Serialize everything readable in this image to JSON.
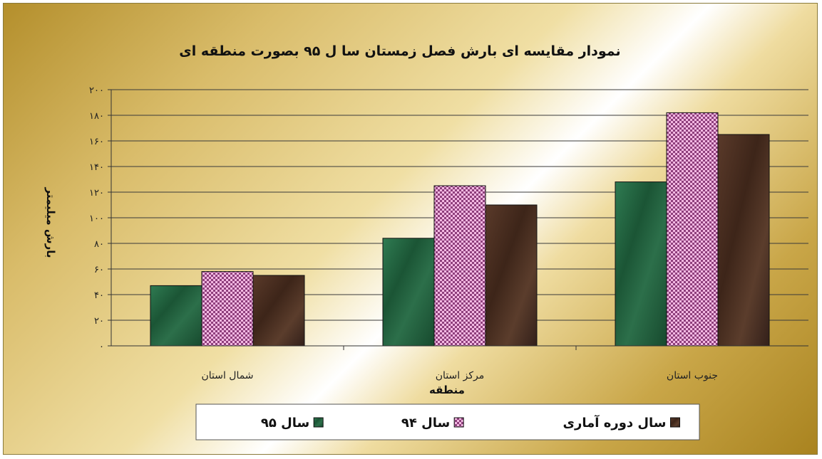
{
  "chart_data": {
    "type": "bar",
    "title": "نمودار مقایسه ای بارش فصل زمستان سا ل ۹۵ بصورت منطقه ای",
    "xlabel": "منطقه",
    "ylabel": "بارش میلیمتر",
    "categories": [
      "شمال استان",
      "مرکز استان",
      "جنوب استان"
    ],
    "y_tick_labels": [
      "۰",
      "۲۰",
      "۴۰",
      "۶۰",
      "۸۰",
      "۱۰۰",
      "۱۲۰",
      "۱۴۰",
      "۱۶۰",
      "۱۸۰",
      "۲۰۰"
    ],
    "ylim": [
      0,
      200
    ],
    "grid": true,
    "legend_position": "bottom",
    "series": [
      {
        "name": "سال ۹۵",
        "values": [
          47,
          84,
          128
        ],
        "color": "#1f5e3c",
        "pattern": "marble-green"
      },
      {
        "name": "سال ۹۴",
        "values": [
          58,
          125,
          182
        ],
        "color": "#e89ad0",
        "pattern": "checker-pink"
      },
      {
        "name": "سال  دوره آماری",
        "values": [
          55,
          110,
          165
        ],
        "color": "#4a2f22",
        "pattern": "marble-brown"
      }
    ]
  }
}
